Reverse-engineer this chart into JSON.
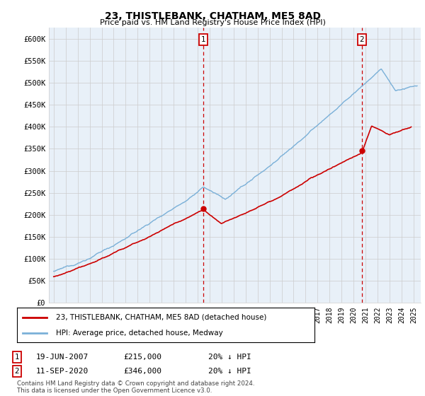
{
  "title": "23, THISTLEBANK, CHATHAM, ME5 8AD",
  "subtitle": "Price paid vs. HM Land Registry's House Price Index (HPI)",
  "legend_line1": "23, THISTLEBANK, CHATHAM, ME5 8AD (detached house)",
  "legend_line2": "HPI: Average price, detached house, Medway",
  "marker1_x": 2007.47,
  "marker1_price": 215000,
  "marker2_x": 2020.7,
  "marker2_price": 346000,
  "footer": "Contains HM Land Registry data © Crown copyright and database right 2024.\nThis data is licensed under the Open Government Licence v3.0.",
  "hpi_color": "#7ab0d8",
  "sold_color": "#cc0000",
  "marker_box_color": "#cc0000",
  "bg_color": "#ffffff",
  "grid_color": "#cccccc",
  "panel_bg": "#e8f0f8"
}
